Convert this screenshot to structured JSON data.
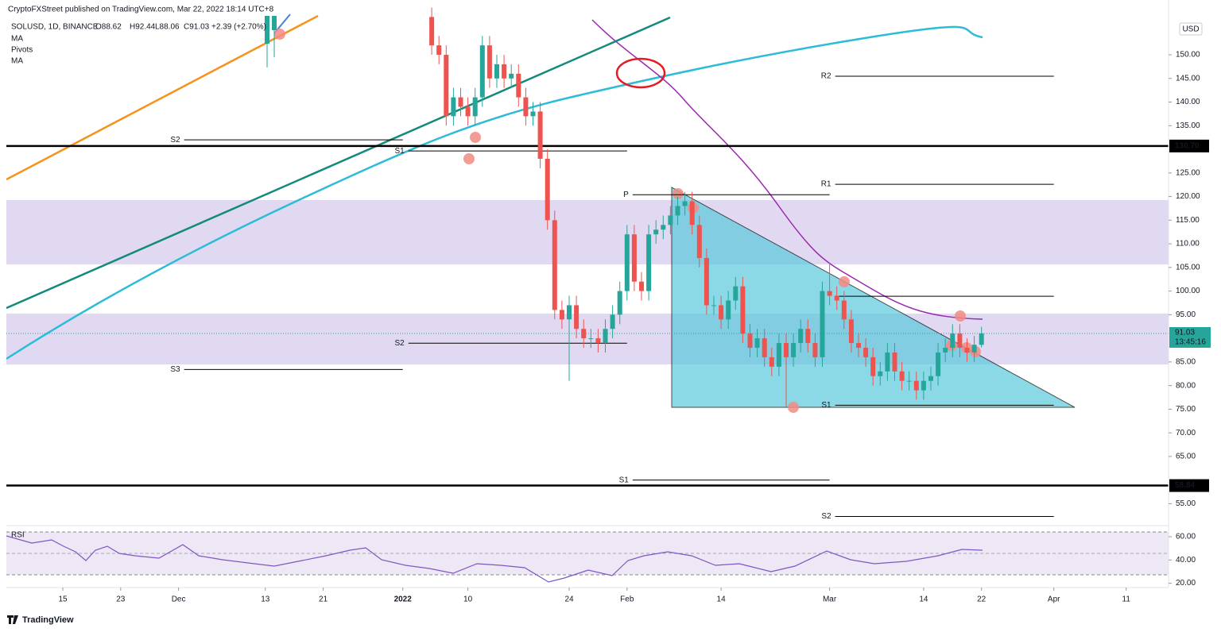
{
  "header": {
    "publisher": "CryptoFXStreet published on TradingView.com, Mar 22, 2022 18:14 UTC+8",
    "symbol": "SOLUSD, 1D, BINANCE",
    "open": "O88.62",
    "high": "H92.44",
    "low": "L88.06",
    "close": "C91.03",
    "change": "+2.39 (+2.70%)",
    "indicators": [
      "MA",
      "Pivots",
      "MA"
    ],
    "currency": "USD"
  },
  "footer": {
    "brand": "TradingView"
  },
  "chart_data": {
    "type": "candlestick",
    "x": [
      "2022-01-05",
      "2022-01-06",
      "2022-01-07",
      "2022-01-08",
      "2022-01-09",
      "2022-01-10",
      "2022-01-11",
      "2022-01-12",
      "2022-01-13",
      "2022-01-14",
      "2022-01-15",
      "2022-01-16",
      "2022-01-17",
      "2022-01-18",
      "2022-01-19",
      "2022-01-20",
      "2022-01-21",
      "2022-01-22",
      "2022-01-23",
      "2022-01-24",
      "2022-01-25",
      "2022-01-26",
      "2022-01-27",
      "2022-01-28",
      "2022-01-29",
      "2022-01-30",
      "2022-01-31",
      "2022-02-01",
      "2022-02-02",
      "2022-02-03",
      "2022-02-04",
      "2022-02-05",
      "2022-02-06",
      "2022-02-07",
      "2022-02-08",
      "2022-02-09",
      "2022-02-10",
      "2022-02-11",
      "2022-02-12",
      "2022-02-13",
      "2022-02-14",
      "2022-02-15",
      "2022-02-16",
      "2022-02-17",
      "2022-02-18",
      "2022-02-19",
      "2022-02-20",
      "2022-02-21",
      "2022-02-22",
      "2022-02-23",
      "2022-02-24",
      "2022-02-25",
      "2022-02-26",
      "2022-02-27",
      "2022-02-28",
      "2022-03-01",
      "2022-03-02",
      "2022-03-03",
      "2022-03-04",
      "2022-03-05",
      "2022-03-06",
      "2022-03-07",
      "2022-03-08",
      "2022-03-09",
      "2022-03-10",
      "2022-03-11",
      "2022-03-12",
      "2022-03-13",
      "2022-03-14",
      "2022-03-15",
      "2022-03-16",
      "2022-03-17",
      "2022-03-18",
      "2022-03-19",
      "2022-03-20",
      "2022-03-21",
      "2022-03-22"
    ],
    "open": [
      158,
      152,
      150,
      137,
      141,
      139,
      137,
      141,
      152,
      145,
      148,
      145,
      146,
      141,
      137,
      138,
      128,
      115,
      96,
      94,
      97,
      92,
      90,
      90,
      89,
      92,
      95,
      100,
      112,
      102,
      100,
      112,
      113,
      114,
      116,
      118,
      119,
      114,
      107,
      97,
      97,
      94,
      98,
      101,
      91,
      88,
      90,
      86,
      84,
      89,
      86,
      89,
      92,
      89,
      86,
      100,
      99,
      98,
      94,
      89,
      88,
      86,
      82,
      83,
      87,
      83,
      81,
      81,
      79,
      81,
      82,
      87,
      88,
      91,
      88,
      87,
      88.62
    ],
    "high": [
      160,
      154,
      152,
      143,
      143,
      141,
      143,
      154,
      154,
      150,
      150,
      148,
      148,
      143,
      140,
      140,
      130,
      117,
      98,
      99,
      99,
      94,
      92,
      92,
      94,
      97,
      102,
      114,
      114,
      104,
      114,
      115,
      116,
      118,
      120,
      121,
      121,
      116,
      109,
      99,
      99,
      100,
      103,
      103,
      93,
      92,
      92,
      88,
      91,
      91,
      91,
      94,
      94,
      91,
      102,
      106,
      101,
      100,
      96,
      91,
      90,
      88,
      85,
      89,
      89,
      85,
      83,
      83,
      83,
      84,
      89,
      90,
      93,
      93,
      90,
      90.5,
      92.44
    ],
    "low": [
      150,
      148,
      135,
      135,
      137,
      135,
      135,
      139,
      143,
      143,
      143,
      143,
      139,
      135,
      135,
      126,
      113,
      94,
      92,
      81,
      90,
      88,
      88,
      87,
      87,
      90,
      93,
      98,
      100,
      98,
      98,
      110,
      111,
      112,
      114,
      116,
      112,
      105,
      95,
      95,
      92,
      92,
      96,
      89,
      86,
      86,
      84,
      82,
      82,
      75.5,
      84,
      87,
      87,
      84,
      84,
      97,
      96,
      92,
      87,
      86,
      84,
      80,
      80,
      81,
      81,
      79,
      79,
      77,
      77,
      79,
      80,
      85,
      86,
      86,
      85,
      85,
      88.06
    ],
    "close": [
      152,
      150,
      137,
      141,
      139,
      137,
      141,
      152,
      145,
      148,
      145,
      146,
      141,
      137,
      138,
      128,
      115,
      96,
      94,
      97,
      92,
      90,
      90,
      89,
      92,
      95,
      100,
      112,
      102,
      100,
      112,
      113,
      114,
      116,
      118,
      119,
      114,
      107,
      97,
      97,
      94,
      98,
      101,
      91,
      88,
      90,
      86,
      84,
      89,
      86,
      89,
      92,
      89,
      86,
      100,
      99,
      98,
      94,
      89,
      88,
      86,
      82,
      83,
      87,
      83,
      81,
      81,
      79,
      81,
      82,
      87,
      88,
      91,
      88,
      87,
      88.64,
      91.03
    ],
    "up_color": "#26a69a",
    "down_color": "#ef5350",
    "ylim": [
      50.7,
      161.6
    ],
    "yticks": [
      {
        "value": 150,
        "label": "150.00"
      },
      {
        "value": 145,
        "label": "145.00"
      },
      {
        "value": 140,
        "label": "140.00"
      },
      {
        "value": 135,
        "label": "135.00"
      },
      {
        "value": 125,
        "label": "125.00"
      },
      {
        "value": 120,
        "label": "120.00"
      },
      {
        "value": 115,
        "label": "115.00"
      },
      {
        "value": 110,
        "label": "110.00"
      },
      {
        "value": 105,
        "label": "105.00"
      },
      {
        "value": 100,
        "label": "100.00"
      },
      {
        "value": 95,
        "label": "95.00"
      },
      {
        "value": 85,
        "label": "85.00"
      },
      {
        "value": 80,
        "label": "80.00"
      },
      {
        "value": 75,
        "label": "75.00"
      },
      {
        "value": 70,
        "label": "70.00"
      },
      {
        "value": 65,
        "label": "65.00"
      },
      {
        "value": 55,
        "label": "55.00"
      }
    ],
    "xticks": [
      {
        "value": "2021-11-15",
        "label": "15"
      },
      {
        "value": "2021-11-23",
        "label": "23"
      },
      {
        "value": "2021-12-01",
        "label": "Dec"
      },
      {
        "value": "2021-12-13",
        "label": "13"
      },
      {
        "value": "2021-12-21",
        "label": "21"
      },
      {
        "value": "2022-01-01",
        "label": "2022"
      },
      {
        "value": "2022-01-10",
        "label": "10"
      },
      {
        "value": "2022-01-24",
        "label": "24"
      },
      {
        "value": "2022-02-01",
        "label": "Feb"
      },
      {
        "value": "2022-02-14",
        "label": "14"
      },
      {
        "value": "2022-03-01",
        "label": "Mar"
      },
      {
        "value": "2022-03-14",
        "label": "14"
      },
      {
        "value": "2022-03-22",
        "label": "22"
      },
      {
        "value": "2022-04-01",
        "label": "Apr"
      },
      {
        "value": "2022-04-11",
        "label": "11"
      }
    ],
    "levels": [
      {
        "value": 130.7,
        "label": "130.70"
      },
      {
        "value": 58.84,
        "label": "58.84"
      }
    ],
    "last_price": {
      "value": 91.03,
      "label": "91.03",
      "countdown": "13:45:16"
    },
    "pivots": [
      {
        "label": "S2",
        "value": 132,
        "from": "2021-12-01",
        "to": "2022-01-01"
      },
      {
        "label": "S3",
        "value": 83.4,
        "from": "2021-12-01",
        "to": "2022-01-01"
      },
      {
        "label": "S1",
        "value": 129.65,
        "from": "2022-01-01",
        "to": "2022-02-01"
      },
      {
        "label": "S2",
        "value": 88.96,
        "from": "2022-01-01",
        "to": "2022-02-01"
      },
      {
        "label": "P",
        "value": 120.4,
        "from": "2022-02-01",
        "to": "2022-03-01"
      },
      {
        "label": "S1",
        "value": 60,
        "from": "2022-02-01",
        "to": "2022-03-01"
      },
      {
        "label": "R2",
        "value": 145.46,
        "from": "2022-03-01",
        "to": "2022-04-01"
      },
      {
        "label": "R1",
        "value": 122.6,
        "from": "2022-03-01",
        "to": "2022-04-01"
      },
      {
        "label": null,
        "value": 98.9,
        "from": "2022-03-01",
        "to": "2022-04-01"
      },
      {
        "label": "S1",
        "value": 75.84,
        "from": "2022-03-01",
        "to": "2022-04-01"
      },
      {
        "label": "S2",
        "value": 52.3,
        "from": "2022-03-01",
        "to": "2022-04-01"
      }
    ],
    "rsi": {
      "label": "RSI",
      "ylim": [
        16.3,
        68.2
      ],
      "yticks": [
        {
          "value": 60,
          "label": "60.00"
        },
        {
          "value": 40,
          "label": "40.00"
        },
        {
          "value": 20,
          "label": "20.00"
        }
      ]
    }
  }
}
